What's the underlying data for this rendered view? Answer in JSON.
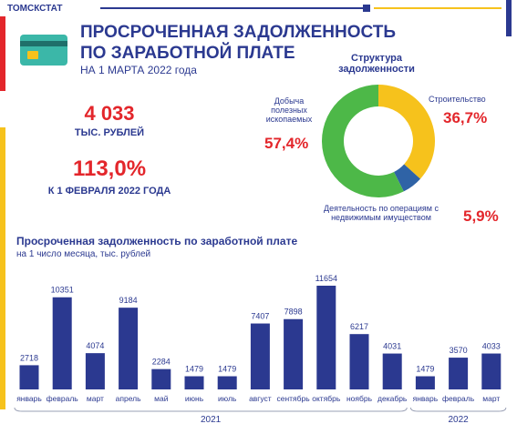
{
  "header": {
    "agency": "ТОМСКСТАТ",
    "title": [
      "ПРОСРОЧЕННАЯ ЗАДОЛЖЕННОСТЬ",
      "ПО ЗАРАБОТНОЙ ПЛАТЕ"
    ],
    "date": "НА 1 МАРТА 2022 года"
  },
  "stats": {
    "amount": "4 033",
    "amount_unit": "ТЫС. РУБЛЕЙ",
    "ratio": "113,0%",
    "ratio_note": "К 1 ФЕВРАЛЯ 2022 ГОДА"
  },
  "chart_data": [
    {
      "type": "pie",
      "donut": true,
      "title": "Структура задолженности",
      "categories": [
        "Строительство",
        "Деятельность по операциям с недвижимым имуществом",
        "Добыча полезных ископаемых"
      ],
      "values": [
        36.7,
        5.9,
        57.4
      ],
      "value_labels": [
        "36,7%",
        "5,9%",
        "57,4%"
      ],
      "colors": [
        "#f6c21c",
        "#2f63a6",
        "#4db848"
      ]
    },
    {
      "type": "bar",
      "title": "Просроченная задолженность по заработной плате",
      "subtitle": "на 1 число месяца, тыс. рублей",
      "categories": [
        "январь",
        "февраль",
        "март",
        "апрель",
        "май",
        "июнь",
        "июль",
        "август",
        "сентябрь",
        "октябрь",
        "ноябрь",
        "декабрь",
        "январь",
        "февраль",
        "март"
      ],
      "values": [
        2718,
        10351,
        4074,
        9184,
        2284,
        1479,
        1479,
        7407,
        7898,
        11654,
        6217,
        4031,
        1479,
        3570,
        4033
      ],
      "color": "#2b3990",
      "groups": [
        "2021",
        "2022"
      ]
    }
  ]
}
